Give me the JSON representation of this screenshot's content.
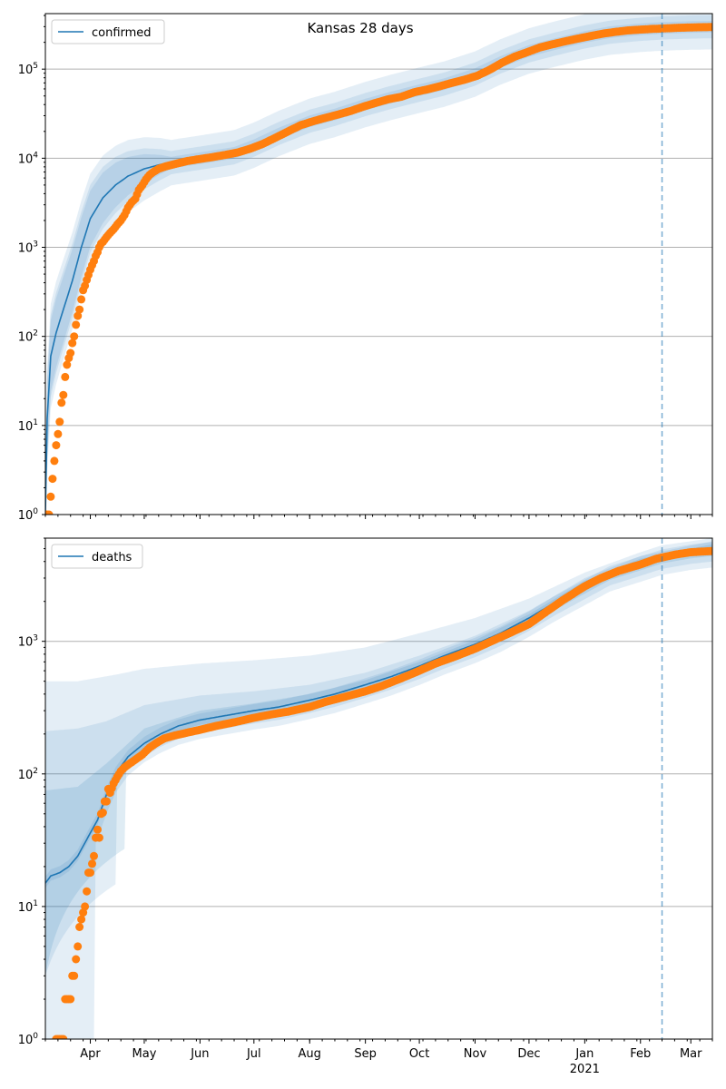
{
  "title": "Kansas 28 days",
  "colors": {
    "model": "#1f77b4",
    "observed": "#ff7f0e",
    "band": "#1f77b4",
    "grid": "#b0b0b0",
    "forecast_line": "#1f77b4"
  },
  "x_axis": {
    "start": "2020-03-07",
    "end": "2021-03-13",
    "month_ticks": [
      {
        "date": "2020-04-01",
        "label": "Apr"
      },
      {
        "date": "2020-05-01",
        "label": "May"
      },
      {
        "date": "2020-06-01",
        "label": "Jun"
      },
      {
        "date": "2020-07-01",
        "label": "Jul"
      },
      {
        "date": "2020-08-01",
        "label": "Aug"
      },
      {
        "date": "2020-09-01",
        "label": "Sep"
      },
      {
        "date": "2020-10-01",
        "label": "Oct"
      },
      {
        "date": "2020-11-01",
        "label": "Nov"
      },
      {
        "date": "2020-12-01",
        "label": "Dec"
      },
      {
        "date": "2021-01-01",
        "label": "Jan"
      },
      {
        "date": "2021-02-01",
        "label": "Feb"
      },
      {
        "date": "2021-03-01",
        "label": "Mar"
      }
    ],
    "year_label": {
      "date": "2021-01-01",
      "label": "2021"
    },
    "forecast_start": "2021-02-13"
  },
  "chart_data": [
    {
      "type": "line",
      "name": "confirmed",
      "legend": "confirmed",
      "legend_position": "upper-left",
      "y_scale": "log",
      "ylim": [
        1,
        420000
      ],
      "y_ticks": [
        {
          "value": 1,
          "base": "10",
          "exp": "0"
        },
        {
          "value": 10,
          "base": "10",
          "exp": "1"
        },
        {
          "value": 100,
          "base": "10",
          "exp": "2"
        },
        {
          "value": 1000,
          "base": "10",
          "exp": "3"
        },
        {
          "value": 10000,
          "base": "10",
          "exp": "4"
        },
        {
          "value": 100000,
          "base": "10",
          "exp": "5"
        }
      ],
      "grid": true,
      "model": [
        [
          "2020-03-07",
          1
        ],
        [
          "2020-03-08",
          12
        ],
        [
          "2020-03-10",
          60
        ],
        [
          "2020-03-13",
          110
        ],
        [
          "2020-03-17",
          200
        ],
        [
          "2020-03-22",
          420
        ],
        [
          "2020-03-27",
          1000
        ],
        [
          "2020-04-01",
          2100
        ],
        [
          "2020-04-08",
          3600
        ],
        [
          "2020-04-15",
          5000
        ],
        [
          "2020-04-22",
          6300
        ],
        [
          "2020-05-01",
          7600
        ],
        [
          "2020-05-10",
          8500
        ],
        [
          "2020-05-20",
          9200
        ],
        [
          "2020-06-01",
          10000
        ],
        [
          "2020-06-20",
          11500
        ],
        [
          "2020-07-01",
          14000
        ],
        [
          "2020-07-15",
          19000
        ],
        [
          "2020-08-01",
          26000
        ],
        [
          "2020-08-15",
          31000
        ],
        [
          "2020-09-01",
          40000
        ],
        [
          "2020-09-15",
          48000
        ],
        [
          "2020-10-01",
          58000
        ],
        [
          "2020-10-15",
          68000
        ],
        [
          "2020-11-01",
          88000
        ],
        [
          "2020-11-15",
          120000
        ],
        [
          "2020-12-01",
          160000
        ],
        [
          "2020-12-15",
          190000
        ],
        [
          "2021-01-01",
          230000
        ],
        [
          "2021-01-15",
          260000
        ],
        [
          "2021-02-01",
          280000
        ],
        [
          "2021-02-13",
          290000
        ],
        [
          "2021-03-01",
          297000
        ],
        [
          "2021-03-13",
          300000
        ]
      ],
      "band_factors": [
        1.35,
        1.8
      ],
      "observed": [
        [
          "2020-03-07",
          1
        ],
        [
          "2020-03-08",
          1
        ],
        [
          "2020-03-09",
          1
        ],
        [
          "2020-03-12",
          4
        ],
        [
          "2020-03-13",
          6
        ],
        [
          "2020-03-14",
          8
        ],
        [
          "2020-03-15",
          11
        ],
        [
          "2020-03-16",
          18
        ],
        [
          "2020-03-17",
          22
        ],
        [
          "2020-03-18",
          35
        ],
        [
          "2020-03-19",
          48
        ],
        [
          "2020-03-20",
          57
        ],
        [
          "2020-03-21",
          65
        ],
        [
          "2020-03-22",
          84
        ],
        [
          "2020-03-23",
          100
        ],
        [
          "2020-03-24",
          135
        ],
        [
          "2020-03-25",
          170
        ],
        [
          "2020-03-26",
          200
        ],
        [
          "2020-03-27",
          260
        ],
        [
          "2020-03-28",
          330
        ],
        [
          "2020-03-29",
          370
        ],
        [
          "2020-03-30",
          430
        ],
        [
          "2020-03-31",
          490
        ],
        [
          "2020-04-01",
          560
        ],
        [
          "2020-04-02",
          630
        ],
        [
          "2020-04-03",
          700
        ],
        [
          "2020-04-04",
          800
        ],
        [
          "2020-04-05",
          880
        ],
        [
          "2020-04-06",
          1000
        ],
        [
          "2020-04-07",
          1100
        ],
        [
          "2020-04-08",
          1150
        ],
        [
          "2020-04-10",
          1300
        ],
        [
          "2020-04-12",
          1450
        ],
        [
          "2020-04-14",
          1600
        ],
        [
          "2020-04-16",
          1800
        ],
        [
          "2020-04-18",
          2000
        ],
        [
          "2020-04-20",
          2300
        ],
        [
          "2020-04-22",
          2800
        ],
        [
          "2020-04-24",
          3200
        ],
        [
          "2020-04-26",
          3500
        ],
        [
          "2020-04-28",
          4400
        ],
        [
          "2020-04-30",
          5000
        ],
        [
          "2020-05-02",
          5800
        ],
        [
          "2020-05-04",
          6500
        ],
        [
          "2020-05-06",
          7000
        ],
        [
          "2020-05-09",
          7600
        ],
        [
          "2020-05-12",
          8000
        ],
        [
          "2020-05-16",
          8400
        ],
        [
          "2020-05-20",
          8800
        ],
        [
          "2020-05-25",
          9300
        ],
        [
          "2020-06-01",
          9800
        ],
        [
          "2020-06-08",
          10300
        ],
        [
          "2020-06-15",
          10900
        ],
        [
          "2020-06-22",
          11600
        ],
        [
          "2020-06-29",
          12800
        ],
        [
          "2020-07-06",
          14500
        ],
        [
          "2020-07-13",
          17000
        ],
        [
          "2020-07-20",
          20000
        ],
        [
          "2020-07-27",
          23500
        ],
        [
          "2020-08-03",
          26000
        ],
        [
          "2020-08-10",
          28500
        ],
        [
          "2020-08-17",
          31000
        ],
        [
          "2020-08-24",
          34000
        ],
        [
          "2020-08-31",
          38000
        ],
        [
          "2020-09-07",
          42000
        ],
        [
          "2020-09-14",
          46000
        ],
        [
          "2020-09-21",
          49000
        ],
        [
          "2020-09-28",
          55000
        ],
        [
          "2020-10-05",
          59000
        ],
        [
          "2020-10-12",
          64000
        ],
        [
          "2020-10-19",
          70000
        ],
        [
          "2020-10-26",
          76000
        ],
        [
          "2020-11-02",
          84000
        ],
        [
          "2020-11-09",
          98000
        ],
        [
          "2020-11-16",
          118000
        ],
        [
          "2020-11-23",
          138000
        ],
        [
          "2020-11-30",
          155000
        ],
        [
          "2020-12-07",
          175000
        ],
        [
          "2020-12-14",
          190000
        ],
        [
          "2020-12-21",
          205000
        ],
        [
          "2020-12-28",
          220000
        ],
        [
          "2021-01-04",
          235000
        ],
        [
          "2021-01-11",
          250000
        ],
        [
          "2021-01-18",
          262000
        ],
        [
          "2021-01-25",
          272000
        ],
        [
          "2021-02-01",
          278000
        ],
        [
          "2021-02-08",
          283000
        ],
        [
          "2021-02-15",
          287000
        ],
        [
          "2021-02-22",
          291000
        ],
        [
          "2021-03-01",
          294000
        ],
        [
          "2021-03-08",
          296000
        ],
        [
          "2021-03-13",
          297000
        ]
      ]
    },
    {
      "type": "line",
      "name": "deaths",
      "legend": "deaths",
      "legend_position": "upper-left",
      "y_scale": "log",
      "ylim": [
        1,
        6000
      ],
      "y_ticks": [
        {
          "value": 1,
          "base": "10",
          "exp": "0"
        },
        {
          "value": 10,
          "base": "10",
          "exp": "1"
        },
        {
          "value": 100,
          "base": "10",
          "exp": "2"
        },
        {
          "value": 1000,
          "base": "10",
          "exp": "3"
        }
      ],
      "grid": true,
      "model": [
        [
          "2020-03-07",
          15
        ],
        [
          "2020-03-10",
          17
        ],
        [
          "2020-03-15",
          18
        ],
        [
          "2020-03-20",
          20
        ],
        [
          "2020-03-25",
          24
        ],
        [
          "2020-03-30",
          32
        ],
        [
          "2020-04-05",
          45
        ],
        [
          "2020-04-10",
          70
        ],
        [
          "2020-04-15",
          100
        ],
        [
          "2020-04-22",
          135
        ],
        [
          "2020-05-01",
          170
        ],
        [
          "2020-05-10",
          200
        ],
        [
          "2020-05-20",
          230
        ],
        [
          "2020-06-01",
          255
        ],
        [
          "2020-06-15",
          275
        ],
        [
          "2020-07-01",
          300
        ],
        [
          "2020-07-15",
          320
        ],
        [
          "2020-08-01",
          360
        ],
        [
          "2020-08-15",
          400
        ],
        [
          "2020-09-01",
          470
        ],
        [
          "2020-09-15",
          540
        ],
        [
          "2020-10-01",
          650
        ],
        [
          "2020-10-15",
          780
        ],
        [
          "2020-11-01",
          950
        ],
        [
          "2020-11-15",
          1150
        ],
        [
          "2020-12-01",
          1500
        ],
        [
          "2020-12-15",
          1950
        ],
        [
          "2021-01-01",
          2600
        ],
        [
          "2021-01-15",
          3300
        ],
        [
          "2021-02-01",
          3900
        ],
        [
          "2021-02-13",
          4400
        ],
        [
          "2021-03-01",
          4800
        ],
        [
          "2021-03-13",
          5000
        ]
      ],
      "band_inner": [
        [
          1.8,
          0.2
        ],
        [
          1.7,
          0.35
        ],
        [
          1.6,
          0.55
        ],
        [
          1.45,
          0.7
        ],
        [
          1.35,
          0.78
        ],
        [
          1.3,
          0.82
        ],
        [
          1.25,
          0.84
        ],
        [
          1.22,
          0.86
        ],
        [
          1.2,
          0.87
        ]
      ],
      "band_outer_top": [
        [
          "2020-03-07",
          500
        ],
        [
          "2020-03-25",
          500
        ],
        [
          "2020-04-15",
          560
        ],
        [
          "2020-05-01",
          620
        ],
        [
          "2020-06-01",
          680
        ],
        [
          "2020-07-01",
          720
        ],
        [
          "2020-08-01",
          780
        ],
        [
          "2020-09-01",
          900
        ],
        [
          "2020-10-01",
          1150
        ],
        [
          "2020-11-01",
          1500
        ],
        [
          "2020-12-01",
          2100
        ],
        [
          "2021-01-01",
          3300
        ],
        [
          "2021-02-01",
          4700
        ],
        [
          "2021-02-13",
          5300
        ],
        [
          "2021-03-13",
          6000
        ]
      ],
      "band_mid_top": [
        [
          "2020-03-07",
          210
        ],
        [
          "2020-03-25",
          220
        ],
        [
          "2020-04-10",
          250
        ],
        [
          "2020-05-01",
          330
        ],
        [
          "2020-06-01",
          390
        ],
        [
          "2020-07-01",
          420
        ],
        [
          "2020-08-01",
          470
        ],
        [
          "2020-09-01",
          580
        ],
        [
          "2020-10-01",
          780
        ],
        [
          "2020-11-01",
          1100
        ],
        [
          "2020-12-01",
          1700
        ],
        [
          "2021-01-01",
          3000
        ],
        [
          "2021-02-01",
          4400
        ],
        [
          "2021-03-13",
          5700
        ]
      ],
      "band_low_top": [
        [
          "2020-03-07",
          75
        ],
        [
          "2020-03-25",
          80
        ],
        [
          "2020-04-10",
          120
        ],
        [
          "2020-05-01",
          220
        ],
        [
          "2020-06-01",
          300
        ],
        [
          "2020-07-01",
          340
        ],
        [
          "2020-08-01",
          400
        ],
        [
          "2020-09-01",
          510
        ],
        [
          "2020-10-01",
          700
        ],
        [
          "2020-11-01",
          1020
        ],
        [
          "2020-12-01",
          1600
        ],
        [
          "2021-01-01",
          2850
        ],
        [
          "2021-02-01",
          4200
        ],
        [
          "2021-03-13",
          5400
        ]
      ],
      "observed": [
        [
          "2020-03-13",
          1
        ],
        [
          "2020-03-14",
          1
        ],
        [
          "2020-03-15",
          1
        ],
        [
          "2020-03-16",
          1
        ],
        [
          "2020-03-17",
          1
        ],
        [
          "2020-03-18",
          2
        ],
        [
          "2020-03-19",
          2
        ],
        [
          "2020-03-20",
          2
        ],
        [
          "2020-03-21",
          2
        ],
        [
          "2020-03-22",
          3
        ],
        [
          "2020-03-23",
          3
        ],
        [
          "2020-03-24",
          4
        ],
        [
          "2020-03-25",
          5
        ],
        [
          "2020-03-26",
          7
        ],
        [
          "2020-03-27",
          8
        ],
        [
          "2020-03-28",
          9
        ],
        [
          "2020-03-29",
          10
        ],
        [
          "2020-03-30",
          13
        ],
        [
          "2020-03-31",
          18
        ],
        [
          "2020-04-01",
          18
        ],
        [
          "2020-04-02",
          21
        ],
        [
          "2020-04-03",
          24
        ],
        [
          "2020-04-04",
          33
        ],
        [
          "2020-04-05",
          38
        ],
        [
          "2020-04-06",
          33
        ],
        [
          "2020-04-07",
          50
        ],
        [
          "2020-04-08",
          51
        ],
        [
          "2020-04-09",
          62
        ],
        [
          "2020-04-10",
          62
        ],
        [
          "2020-04-11",
          77
        ],
        [
          "2020-04-12",
          72
        ],
        [
          "2020-04-14",
          85
        ],
        [
          "2020-04-16",
          95
        ],
        [
          "2020-04-18",
          105
        ],
        [
          "2020-04-20",
          112
        ],
        [
          "2020-04-23",
          120
        ],
        [
          "2020-04-26",
          128
        ],
        [
          "2020-04-30",
          140
        ],
        [
          "2020-05-04",
          158
        ],
        [
          "2020-05-08",
          172
        ],
        [
          "2020-05-12",
          185
        ],
        [
          "2020-05-18",
          195
        ],
        [
          "2020-05-25",
          205
        ],
        [
          "2020-06-01",
          215
        ],
        [
          "2020-06-10",
          230
        ],
        [
          "2020-06-20",
          245
        ],
        [
          "2020-07-01",
          265
        ],
        [
          "2020-07-10",
          280
        ],
        [
          "2020-07-20",
          295
        ],
        [
          "2020-08-01",
          320
        ],
        [
          "2020-08-10",
          350
        ],
        [
          "2020-08-20",
          380
        ],
        [
          "2020-09-01",
          420
        ],
        [
          "2020-09-10",
          460
        ],
        [
          "2020-09-20",
          520
        ],
        [
          "2020-10-01",
          600
        ],
        [
          "2020-10-10",
          680
        ],
        [
          "2020-10-20",
          760
        ],
        [
          "2020-11-01",
          880
        ],
        [
          "2020-11-10",
          1000
        ],
        [
          "2020-11-20",
          1150
        ],
        [
          "2020-12-01",
          1350
        ],
        [
          "2020-12-10",
          1650
        ],
        [
          "2020-12-20",
          2050
        ],
        [
          "2021-01-01",
          2600
        ],
        [
          "2021-01-10",
          3000
        ],
        [
          "2021-01-20",
          3400
        ],
        [
          "2021-02-01",
          3800
        ],
        [
          "2021-02-10",
          4200
        ],
        [
          "2021-02-20",
          4500
        ],
        [
          "2021-03-01",
          4700
        ],
        [
          "2021-03-13",
          4800
        ]
      ]
    }
  ]
}
